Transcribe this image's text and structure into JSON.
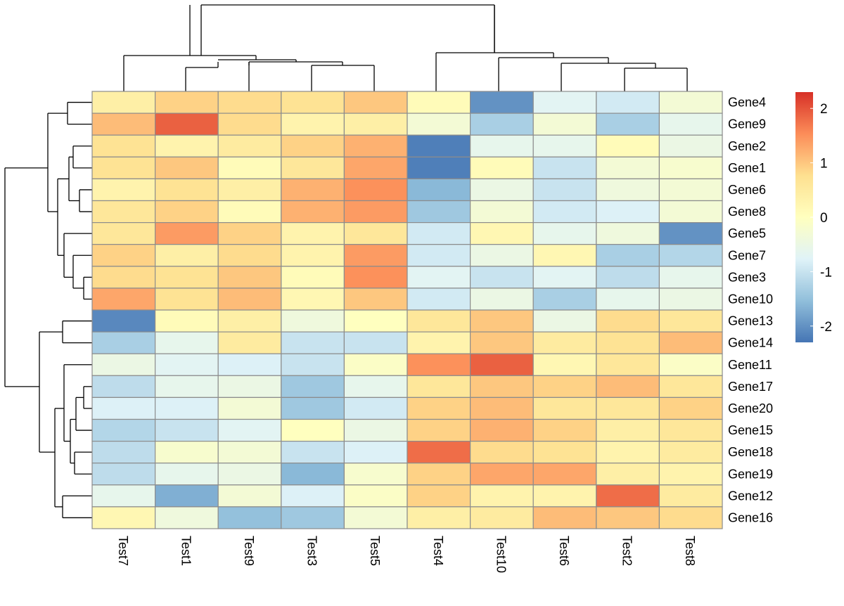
{
  "chart_data": {
    "type": "heatmap",
    "title": "",
    "columns": [
      "Test7",
      "Test1",
      "Test9",
      "Test3",
      "Test5",
      "Test4",
      "Test10",
      "Test6",
      "Test2",
      "Test8"
    ],
    "rows": [
      "Gene4",
      "Gene9",
      "Gene2",
      "Gene1",
      "Gene6",
      "Gene8",
      "Gene5",
      "Gene7",
      "Gene3",
      "Gene10",
      "Gene13",
      "Gene14",
      "Gene11",
      "Gene17",
      "Gene20",
      "Gene15",
      "Gene18",
      "Gene19",
      "Gene12",
      "Gene16"
    ],
    "values": [
      [
        0.4,
        0.9,
        0.8,
        0.7,
        1.0,
        0.1,
        -2.0,
        -0.7,
        -0.9,
        -0.3
      ],
      [
        1.1,
        1.9,
        0.8,
        0.3,
        0.4,
        -0.3,
        -1.3,
        -0.3,
        -1.3,
        -0.6
      ],
      [
        0.7,
        0.3,
        0.5,
        0.9,
        1.2,
        -2.2,
        -0.6,
        -0.6,
        0.1,
        -0.5
      ],
      [
        0.7,
        1.0,
        0.1,
        0.6,
        1.3,
        -2.2,
        0.1,
        -1.0,
        -0.3,
        -0.2
      ],
      [
        0.3,
        0.7,
        0.4,
        1.2,
        1.5,
        -1.6,
        -0.5,
        -1.0,
        -0.4,
        -0.3
      ],
      [
        0.6,
        0.9,
        0.1,
        1.2,
        1.4,
        -1.4,
        -0.3,
        -0.9,
        -0.8,
        -0.3
      ],
      [
        0.6,
        1.4,
        0.9,
        0.3,
        0.6,
        -0.9,
        0.2,
        -0.6,
        -0.4,
        -2.0
      ],
      [
        0.9,
        0.4,
        0.8,
        0.3,
        1.4,
        -0.9,
        -0.5,
        0.2,
        -1.3,
        -1.2
      ],
      [
        0.8,
        0.7,
        1.0,
        0.1,
        1.5,
        -0.7,
        -1.0,
        -0.7,
        -1.1,
        -0.6
      ],
      [
        1.3,
        0.7,
        1.1,
        0.2,
        1.0,
        -0.9,
        -0.5,
        -1.3,
        -0.6,
        -0.5
      ],
      [
        -2.1,
        0.1,
        0.4,
        -0.4,
        0.0,
        0.6,
        1.0,
        -0.5,
        0.8,
        0.6
      ],
      [
        -1.3,
        -0.6,
        0.5,
        -1.0,
        -1.0,
        0.3,
        1.0,
        0.5,
        0.7,
        1.1
      ],
      [
        -0.5,
        -0.7,
        -0.8,
        -1.0,
        -0.1,
        1.5,
        1.9,
        0.2,
        0.6,
        -0.1
      ],
      [
        -1.1,
        -0.6,
        -0.5,
        -1.4,
        -0.6,
        0.6,
        1.0,
        0.9,
        1.1,
        0.6
      ],
      [
        -0.8,
        -0.8,
        -0.3,
        -1.4,
        -0.9,
        0.9,
        1.1,
        0.6,
        0.6,
        0.9
      ],
      [
        -1.2,
        -1.0,
        -0.7,
        0.0,
        -0.5,
        0.9,
        1.2,
        0.9,
        0.4,
        0.6
      ],
      [
        -1.1,
        -0.2,
        -0.3,
        -1.0,
        -0.8,
        1.8,
        0.8,
        0.7,
        0.3,
        0.5
      ],
      [
        -1.1,
        -0.6,
        -0.5,
        -1.6,
        -0.2,
        0.9,
        1.3,
        1.3,
        0.4,
        0.3
      ],
      [
        -0.6,
        -1.7,
        -0.3,
        -0.8,
        -0.1,
        0.9,
        0.3,
        0.3,
        1.8,
        0.5
      ],
      [
        0.2,
        -0.4,
        -1.5,
        -1.4,
        -0.3,
        0.4,
        0.5,
        1.1,
        1.0,
        0.8
      ]
    ],
    "color_scale": {
      "min": -2.3,
      "max": 2.3,
      "stops": [
        "#4575b4",
        "#91bfdb",
        "#e0f3f8",
        "#ffffbf",
        "#fee090",
        "#fc8d59",
        "#d73027"
      ],
      "ticks": [
        2,
        1,
        0,
        -1,
        -2
      ]
    },
    "grid_color": "#8c8c8c",
    "row_dendrogram": true,
    "column_dendrogram": true,
    "legend": "right"
  }
}
